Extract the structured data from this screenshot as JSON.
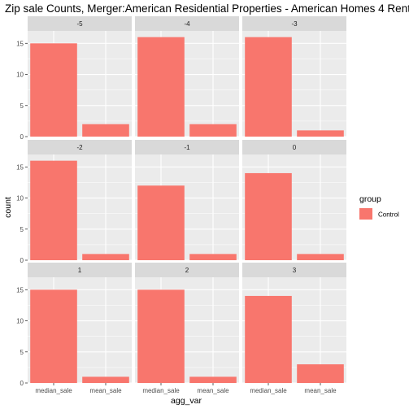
{
  "chart_data": {
    "type": "bar",
    "title": "Zip sale Counts, Merger:American Residential Properties - American Homes 4 Rent",
    "xlabel": "agg_var",
    "ylabel": "count",
    "categories": [
      "median_sale",
      "mean_sale"
    ],
    "ylim": [
      0,
      17
    ],
    "yticks": [
      0,
      5,
      10,
      15
    ],
    "grid": true,
    "legend": {
      "title": "group",
      "position": "right",
      "entries": [
        {
          "name": "Control",
          "color": "#F8766D"
        }
      ]
    },
    "facets": [
      {
        "label": "-5",
        "values": [
          15,
          2
        ]
      },
      {
        "label": "-4",
        "values": [
          16,
          2
        ]
      },
      {
        "label": "-3",
        "values": [
          16,
          1
        ]
      },
      {
        "label": "-2",
        "values": [
          16,
          1
        ]
      },
      {
        "label": "-1",
        "values": [
          12,
          1
        ]
      },
      {
        "label": "0",
        "values": [
          14,
          1
        ]
      },
      {
        "label": "1",
        "values": [
          15,
          1
        ]
      },
      {
        "label": "2",
        "values": [
          15,
          1
        ]
      },
      {
        "label": "3",
        "values": [
          14,
          3
        ]
      }
    ]
  },
  "colors": {
    "bar": "#F8766D",
    "panel": "#EBEBEB",
    "strip": "#D9D9D9",
    "grid": "#FFFFFF"
  }
}
